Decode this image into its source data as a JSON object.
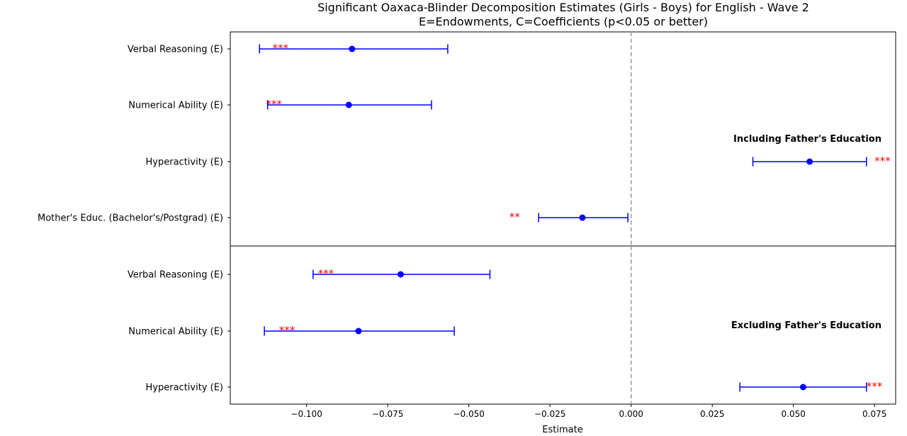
{
  "chart_data": {
    "type": "errorbar",
    "title": "Significant Oaxaca-Blinder Decomposition Estimates (Girls - Boys) for English - Wave 2",
    "subtitle": "E=Endowments, C=Coefficients (p<0.05 or better)",
    "xlabel": "Estimate",
    "xlim": [
      -0.1235,
      0.0815
    ],
    "xticks": [
      "−0.100",
      "−0.075",
      "−0.050",
      "−0.025",
      "0.000",
      "0.025",
      "0.050",
      "0.075"
    ],
    "xtick_values": [
      -0.1,
      -0.075,
      -0.05,
      -0.025,
      0.0,
      0.025,
      0.05,
      0.075
    ],
    "reference_line": 0,
    "colors": {
      "marker": "#0000ff",
      "stars": "#ff0000",
      "reference": "#999999"
    },
    "panels": [
      {
        "label": "Including Father's Education",
        "rows": [
          {
            "name": "Verbal Reasoning (E)",
            "estimate": -0.086,
            "lower": -0.1145,
            "upper": -0.0565,
            "stars": "***",
            "star_x": -0.1105
          },
          {
            "name": "Numerical Ability (E)",
            "estimate": -0.087,
            "lower": -0.112,
            "upper": -0.0615,
            "stars": "***",
            "star_x": -0.1125
          },
          {
            "name": "Hyperactivity (E)",
            "estimate": 0.055,
            "lower": 0.0375,
            "upper": 0.0725,
            "stars": "***",
            "star_x": 0.075
          },
          {
            "name": "Mother's Educ. (Bachelor's/Postgrad) (E)",
            "estimate": -0.015,
            "lower": -0.0285,
            "upper": -0.001,
            "stars": "**",
            "star_x": -0.0375
          }
        ]
      },
      {
        "label": "Excluding Father's Education",
        "rows": [
          {
            "name": "Verbal Reasoning (E)",
            "estimate": -0.071,
            "lower": -0.098,
            "upper": -0.0435,
            "stars": "***",
            "star_x": -0.0965
          },
          {
            "name": "Numerical Ability (E)",
            "estimate": -0.084,
            "lower": -0.113,
            "upper": -0.0545,
            "stars": "***",
            "star_x": -0.1085
          },
          {
            "name": "Hyperactivity (E)",
            "estimate": 0.053,
            "lower": 0.0335,
            "upper": 0.0725,
            "stars": "***",
            "star_x": 0.0725
          }
        ]
      }
    ]
  }
}
